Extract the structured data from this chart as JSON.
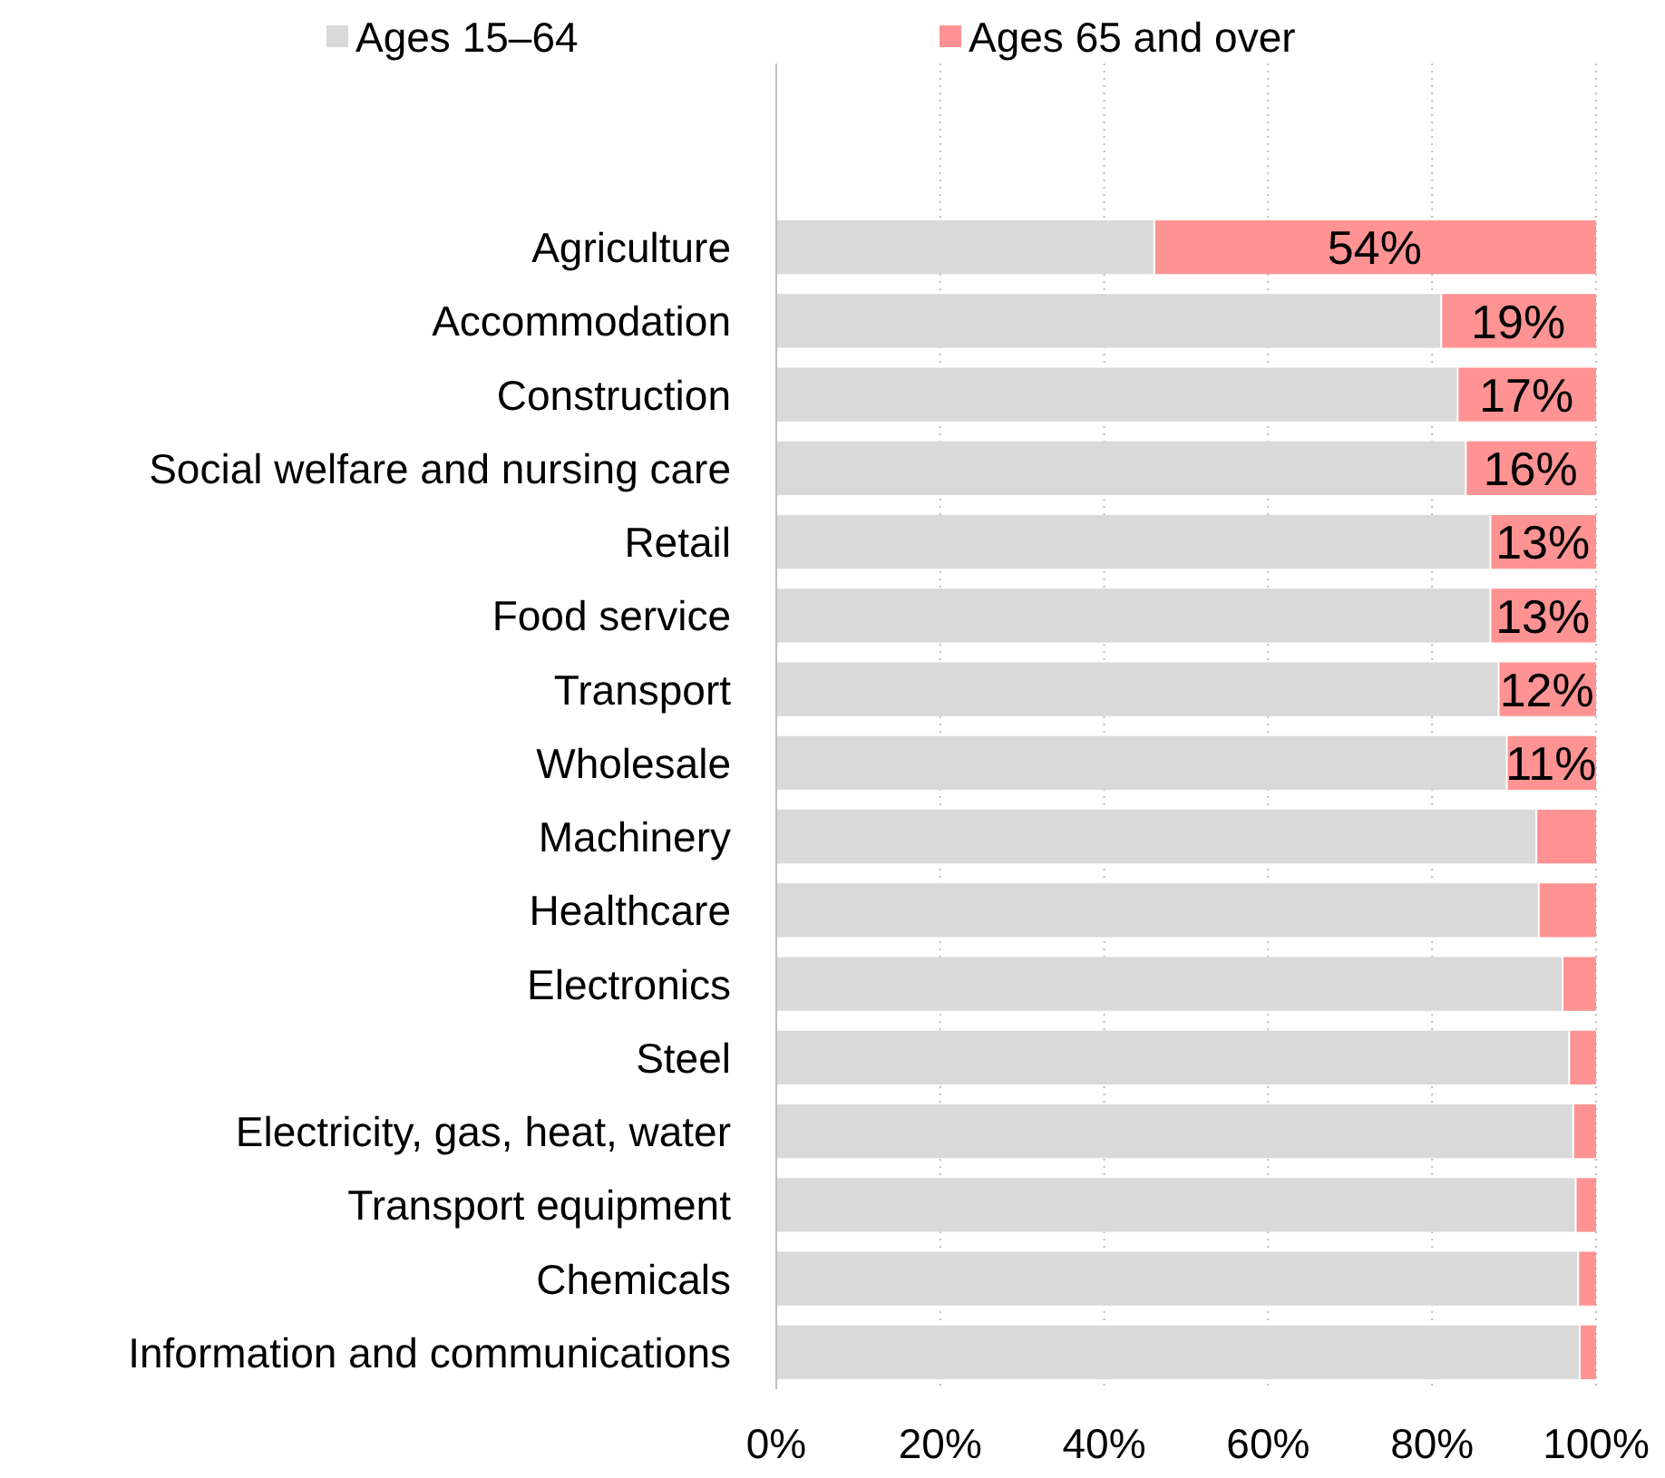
{
  "chart_data": {
    "type": "bar",
    "orientation": "horizontal",
    "stacked": true,
    "categories": [
      "Agriculture",
      "Accommodation",
      "Construction",
      "Social welfare and nursing care",
      "Retail",
      "Food service",
      "Transport",
      "Wholesale",
      "Machinery",
      "Healthcare",
      "Electronics",
      "Steel",
      "Electricity, gas, heat, water",
      "Transport equipment",
      "Chemicals",
      "Information and communications"
    ],
    "series": [
      {
        "name": "Ages 15–64",
        "color": "#d9d9d9",
        "values": [
          46,
          81,
          83,
          84,
          87,
          87,
          88,
          89,
          92.6,
          92.9,
          95.8,
          96.6,
          97.1,
          97.4,
          97.7,
          97.9
        ]
      },
      {
        "name": "Ages 65 and over",
        "color": "#ff9393",
        "values": [
          54,
          19,
          17,
          16,
          13,
          13,
          12,
          11,
          7.4,
          7.1,
          4.2,
          3.4,
          2.9,
          2.6,
          2.3,
          2.1
        ],
        "value_labels": [
          "54%",
          "19%",
          "17%",
          "16%",
          "13%",
          "13%",
          "12%",
          "11%",
          null,
          null,
          null,
          null,
          null,
          null,
          null,
          null
        ]
      }
    ],
    "xlim": [
      0,
      100
    ],
    "xticks": [
      {
        "value": 0,
        "label": "0%"
      },
      {
        "value": 20,
        "label": "20%"
      },
      {
        "value": 40,
        "label": "40%"
      },
      {
        "value": 60,
        "label": "60%"
      },
      {
        "value": 80,
        "label": "80%"
      },
      {
        "value": 100,
        "label": "100%"
      }
    ],
    "grid": "x",
    "legend": "top"
  }
}
